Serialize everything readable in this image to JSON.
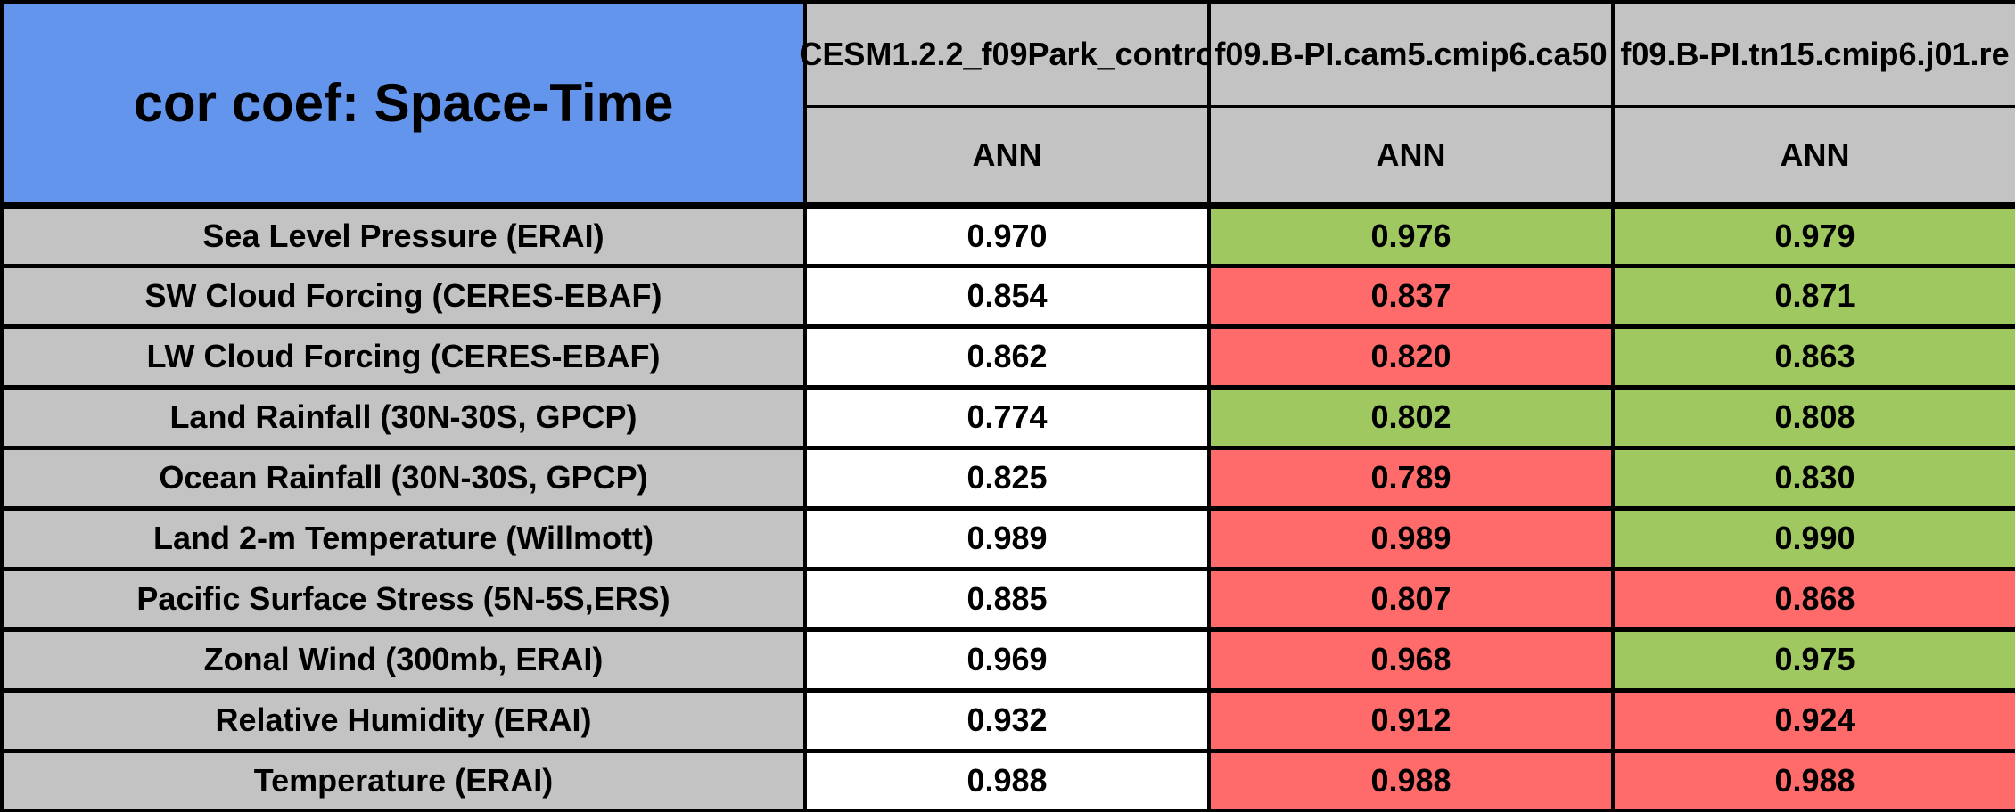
{
  "table": {
    "title": "cor coef: Space-Time",
    "columns": [
      {
        "model": "CESM1.2.2_f09Park_contro",
        "season": "ANN"
      },
      {
        "model": "f09.B-PI.cam5.cmip6.ca50",
        "season": "ANN"
      },
      {
        "model": "f09.B-PI.tn15.cmip6.j01.re",
        "season": "ANN"
      }
    ],
    "rows": [
      {
        "label": "Sea Level Pressure (ERAI)",
        "cells": [
          {
            "text": "0.970",
            "color": "white"
          },
          {
            "text": "0.976",
            "color": "green"
          },
          {
            "text": "0.979",
            "color": "green"
          }
        ]
      },
      {
        "label": "SW Cloud Forcing (CERES-EBAF)",
        "cells": [
          {
            "text": "0.854",
            "color": "white"
          },
          {
            "text": "0.837",
            "color": "red"
          },
          {
            "text": "0.871",
            "color": "green"
          }
        ]
      },
      {
        "label": "LW Cloud Forcing (CERES-EBAF)",
        "cells": [
          {
            "text": "0.862",
            "color": "white"
          },
          {
            "text": "0.820",
            "color": "red"
          },
          {
            "text": "0.863",
            "color": "green"
          }
        ]
      },
      {
        "label": "Land Rainfall (30N-30S, GPCP)",
        "cells": [
          {
            "text": "0.774",
            "color": "white"
          },
          {
            "text": "0.802",
            "color": "green"
          },
          {
            "text": "0.808",
            "color": "green"
          }
        ]
      },
      {
        "label": "Ocean Rainfall (30N-30S, GPCP)",
        "cells": [
          {
            "text": "0.825",
            "color": "white"
          },
          {
            "text": "0.789",
            "color": "red"
          },
          {
            "text": "0.830",
            "color": "green"
          }
        ]
      },
      {
        "label": "Land 2-m Temperature (Willmott)",
        "cells": [
          {
            "text": "0.989",
            "color": "white"
          },
          {
            "text": "0.989",
            "color": "red"
          },
          {
            "text": "0.990",
            "color": "green"
          }
        ]
      },
      {
        "label": "Pacific Surface Stress (5N-5S,ERS)",
        "cells": [
          {
            "text": "0.885",
            "color": "white"
          },
          {
            "text": "0.807",
            "color": "red"
          },
          {
            "text": "0.868",
            "color": "red"
          }
        ]
      },
      {
        "label": "Zonal Wind (300mb, ERAI)",
        "cells": [
          {
            "text": "0.969",
            "color": "white"
          },
          {
            "text": "0.968",
            "color": "red"
          },
          {
            "text": "0.975",
            "color": "green"
          }
        ]
      },
      {
        "label": "Relative Humidity (ERAI)",
        "cells": [
          {
            "text": "0.932",
            "color": "white"
          },
          {
            "text": "0.912",
            "color": "red"
          },
          {
            "text": "0.924",
            "color": "red"
          }
        ]
      },
      {
        "label": "Temperature (ERAI)",
        "cells": [
          {
            "text": "0.988",
            "color": "white"
          },
          {
            "text": "0.988",
            "color": "red"
          },
          {
            "text": "0.988",
            "color": "red"
          }
        ]
      }
    ]
  },
  "colors": {
    "title_background": "#6495ED",
    "header_gray": "#C3C3C3",
    "cell_green": "#A0C860",
    "cell_red": "#FF6B6B",
    "cell_white": "#FFFFFF",
    "border_black": "#000000"
  },
  "chart_data": {
    "type": "table",
    "title": "cor coef: Space-Time",
    "columns": [
      "CESM1.2.2_f09Park_contro",
      "f09.B-PI.cam5.cmip6.ca50",
      "f09.B-PI.tn15.cmip6.j01.re"
    ],
    "season_subheaders": [
      "ANN",
      "ANN",
      "ANN"
    ],
    "row_labels": [
      "Sea Level Pressure (ERAI)",
      "SW Cloud Forcing (CERES-EBAF)",
      "LW Cloud Forcing (CERES-EBAF)",
      "Land Rainfall (30N-30S, GPCP)",
      "Ocean Rainfall (30N-30S, GPCP)",
      "Land 2-m Temperature (Willmott)",
      "Pacific Surface Stress (5N-5S,ERS)",
      "Zonal Wind (300mb, ERAI)",
      "Relative Humidity (ERAI)",
      "Temperature (ERAI)"
    ],
    "values": [
      [
        0.97,
        0.976,
        0.979
      ],
      [
        0.854,
        0.837,
        0.871
      ],
      [
        0.862,
        0.82,
        0.863
      ],
      [
        0.774,
        0.802,
        0.808
      ],
      [
        0.825,
        0.789,
        0.83
      ],
      [
        0.989,
        0.989,
        0.99
      ],
      [
        0.885,
        0.807,
        0.868
      ],
      [
        0.969,
        0.968,
        0.975
      ],
      [
        0.932,
        0.912,
        0.924
      ],
      [
        0.988,
        0.988,
        0.988
      ]
    ],
    "cell_colors": [
      [
        "white",
        "green",
        "green"
      ],
      [
        "white",
        "red",
        "green"
      ],
      [
        "white",
        "red",
        "green"
      ],
      [
        "white",
        "green",
        "green"
      ],
      [
        "white",
        "red",
        "green"
      ],
      [
        "white",
        "red",
        "green"
      ],
      [
        "white",
        "red",
        "red"
      ],
      [
        "white",
        "red",
        "green"
      ],
      [
        "white",
        "red",
        "red"
      ],
      [
        "white",
        "red",
        "red"
      ]
    ]
  }
}
